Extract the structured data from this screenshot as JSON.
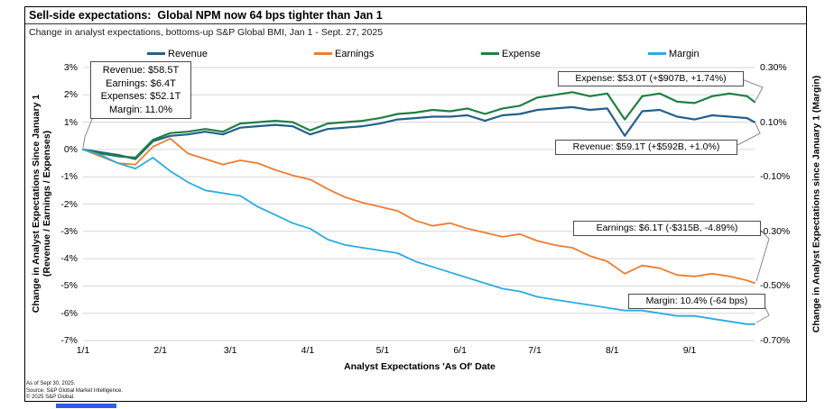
{
  "header": {
    "title": "Sell-side expectations:  Global NPM now 64 bps tighter than Jan 1",
    "subtitle": "Change in analyst expectations, bottoms-up S&P Global BMI, Jan 1 - Sept. 27, 2025"
  },
  "axes": {
    "left": [
      {
        "label": "3%",
        "value": 3
      },
      {
        "label": "2%",
        "value": 2
      },
      {
        "label": "1%",
        "value": 1
      },
      {
        "label": "0%",
        "value": 0
      },
      {
        "label": "-1%",
        "value": -1
      },
      {
        "label": "-2%",
        "value": -2
      },
      {
        "label": "-3%",
        "value": -3
      },
      {
        "label": "-4%",
        "value": -4
      },
      {
        "label": "-5%",
        "value": -5
      },
      {
        "label": "-6%",
        "value": -6
      },
      {
        "label": "-7%",
        "value": -7
      }
    ],
    "right": [
      {
        "label": "0.30%",
        "value": 0.3
      },
      {
        "label": "0.10%",
        "value": 0.1
      },
      {
        "label": "-0.10%",
        "value": -0.1
      },
      {
        "label": "-0.30%",
        "value": -0.3
      },
      {
        "label": "-0.50%",
        "value": -0.5
      },
      {
        "label": "-0.70%",
        "value": -0.7
      }
    ],
    "x": [
      "1/1",
      "2/1",
      "3/1",
      "4/1",
      "5/1",
      "6/1",
      "7/1",
      "8/1",
      "9/1"
    ],
    "ylabel_left_line1": "Change in Analyst Expectations Since January 1",
    "ylabel_left_line2": "(Revenue / Earnings / Expenses)",
    "ylabel_right": "Change in Analyst Expectations since January 1 (Margin)",
    "xlabel": "Analyst Expectations 'As Of' Date"
  },
  "annotations": {
    "jan1": [
      "Revenue: $58.5T",
      "Earnings: $6.4T",
      "Expenses: $52.1T",
      "Margin: 11.0%"
    ],
    "expense": "Expense: $53.0T (+$907B, +1.74%)",
    "revenue": "Revenue: $59.1T (+$592B, +1.0%)",
    "earnings": "Earnings: $6.1T (-$315B, -4.89%)",
    "margin": "Margin: 10.4% (-64 bps)"
  },
  "footer": [
    "As of Sept 30, 2025.",
    "Source: S&P Global Market Intelligence.",
    "© 2025 S&P Global."
  ],
  "colors": {
    "revenue": "#25608c",
    "earnings": "#ee7d2f",
    "expense": "#1f8042",
    "margin": "#2aace3",
    "gridline": "#d6d6d6",
    "leader": "#8a8a8a"
  },
  "chart_data": {
    "type": "line",
    "title": "Sell-side expectations: Global NPM now 64 bps tighter than Jan 1",
    "xlabel": "Analyst Expectations 'As Of' Date",
    "ylabel_left": "Change in Analyst Expectations Since January 1 (Revenue / Earnings / Expenses)",
    "ylabel_right": "Change in Analyst Expectations since January 1 (Margin)",
    "ylim_left": [
      -7,
      3
    ],
    "ylim_right": [
      -0.7,
      0.3
    ],
    "grid": "horizontal",
    "legend_position": "top",
    "x": [
      "1/1",
      "1/8",
      "1/15",
      "1/22",
      "1/29",
      "2/5",
      "2/12",
      "2/19",
      "2/26",
      "3/5",
      "3/12",
      "3/19",
      "3/26",
      "4/2",
      "4/9",
      "4/16",
      "4/23",
      "4/30",
      "5/7",
      "5/14",
      "5/21",
      "5/28",
      "6/4",
      "6/11",
      "6/18",
      "6/25",
      "7/2",
      "7/9",
      "7/16",
      "7/23",
      "7/30",
      "8/6",
      "8/13",
      "8/20",
      "8/27",
      "9/3",
      "9/10",
      "9/17",
      "9/24",
      "9/27"
    ],
    "series": [
      {
        "name": "Revenue",
        "axis": "left",
        "color": "#25608c",
        "values": [
          0,
          -0.1,
          -0.2,
          -0.35,
          0.3,
          0.5,
          0.55,
          0.65,
          0.55,
          0.8,
          0.85,
          0.9,
          0.85,
          0.55,
          0.75,
          0.8,
          0.85,
          0.95,
          1.1,
          1.15,
          1.2,
          1.2,
          1.25,
          1.05,
          1.25,
          1.3,
          1.45,
          1.5,
          1.55,
          1.45,
          1.5,
          0.5,
          1.4,
          1.45,
          1.2,
          1.1,
          1.25,
          1.2,
          1.15,
          1.0
        ]
      },
      {
        "name": "Earnings",
        "axis": "left",
        "color": "#ee7d2f",
        "values": [
          0,
          -0.25,
          -0.5,
          -0.55,
          0.1,
          0.4,
          -0.15,
          -0.35,
          -0.55,
          -0.4,
          -0.5,
          -0.75,
          -0.95,
          -1.1,
          -1.45,
          -1.75,
          -1.95,
          -2.1,
          -2.25,
          -2.6,
          -2.8,
          -2.7,
          -2.9,
          -3.05,
          -3.2,
          -3.1,
          -3.35,
          -3.5,
          -3.6,
          -3.9,
          -4.1,
          -4.55,
          -4.25,
          -4.35,
          -4.6,
          -4.65,
          -4.55,
          -4.65,
          -4.8,
          -4.89
        ]
      },
      {
        "name": "Expense",
        "axis": "left",
        "color": "#1f8042",
        "values": [
          0,
          -0.15,
          -0.25,
          -0.3,
          0.35,
          0.6,
          0.65,
          0.75,
          0.65,
          0.95,
          1.0,
          1.05,
          1.0,
          0.7,
          0.95,
          1.0,
          1.05,
          1.15,
          1.3,
          1.35,
          1.45,
          1.4,
          1.5,
          1.3,
          1.5,
          1.6,
          1.9,
          2.0,
          2.1,
          1.95,
          2.05,
          1.1,
          1.95,
          2.05,
          1.75,
          1.7,
          1.95,
          2.05,
          1.95,
          1.74
        ]
      },
      {
        "name": "Margin",
        "axis": "right",
        "color": "#2aace3",
        "values": [
          0,
          -0.02,
          -0.05,
          -0.07,
          -0.03,
          -0.08,
          -0.12,
          -0.15,
          -0.16,
          -0.17,
          -0.21,
          -0.24,
          -0.27,
          -0.29,
          -0.33,
          -0.35,
          -0.36,
          -0.37,
          -0.38,
          -0.41,
          -0.43,
          -0.45,
          -0.47,
          -0.49,
          -0.51,
          -0.52,
          -0.54,
          -0.55,
          -0.56,
          -0.57,
          -0.58,
          -0.59,
          -0.59,
          -0.6,
          -0.61,
          -0.61,
          -0.62,
          -0.63,
          -0.64,
          -0.64
        ]
      }
    ],
    "end_labels": {
      "revenue": "Revenue: $59.1T (+$592B, +1.0%)",
      "earnings": "Earnings: $6.1T (-$315B, -4.89%)",
      "expense": "Expense: $53.0T (+$907B, +1.74%)",
      "margin": "Margin: 10.4% (-64 bps)"
    }
  }
}
